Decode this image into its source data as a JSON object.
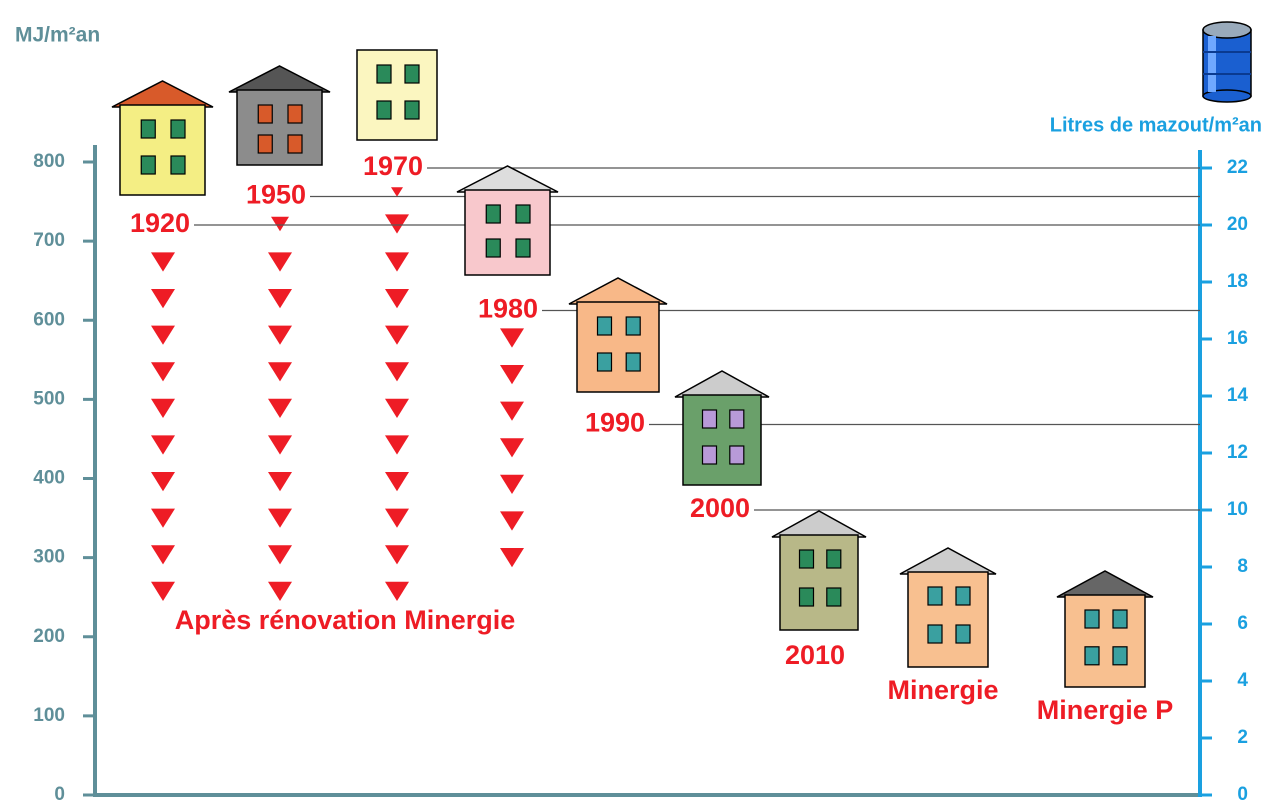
{
  "chart_data": {
    "type": "level",
    "y_label": "MJ/m²an",
    "y2_label": "Litres de mazout/m²an",
    "annotation": "Après rénovation Minergie",
    "categories": [
      "1920",
      "1950",
      "1970",
      "1980",
      "1990",
      "2000",
      "2010",
      "Minergie",
      "Minergie P"
    ],
    "values": [
      20,
      21,
      22,
      17,
      13,
      10,
      null,
      null,
      null
    ],
    "axis": "y2",
    "color": "#ee1c25",
    "ylim": [
      0,
      800
    ],
    "yticks": [
      0,
      100,
      200,
      300,
      400,
      500,
      600,
      700,
      800
    ],
    "y_color": "#5f8f99",
    "y2lim": [
      0,
      22
    ],
    "y2ticks": [
      0,
      2,
      4,
      6,
      8,
      10,
      12,
      14,
      16,
      18,
      20,
      22
    ],
    "y2_color": "#1aa0e0"
  }
}
